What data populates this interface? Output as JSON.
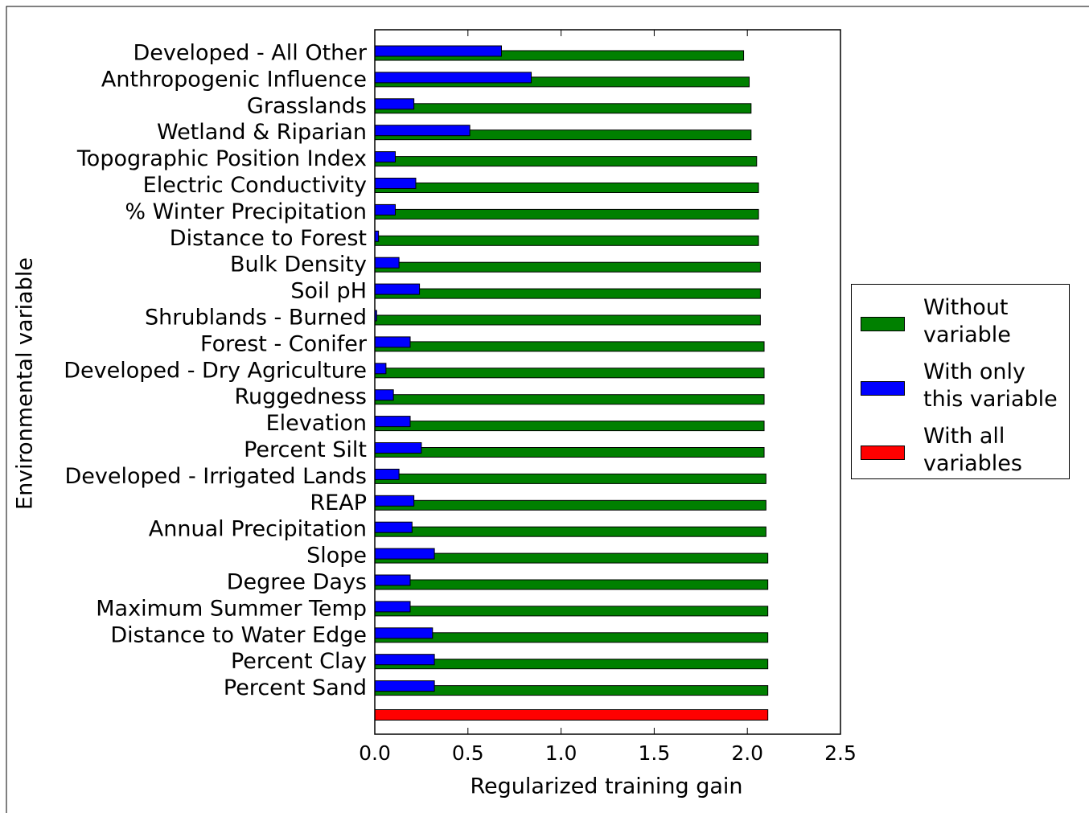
{
  "chart_data": {
    "type": "grouped-hbar",
    "x_label": "Regularized training gain",
    "y_label": "Environmental variable",
    "categories": [
      "Developed - All Other",
      "Anthropogenic Influence",
      "Grasslands",
      "Wetland & Riparian",
      "Topographic Position Index",
      "Electric Conductivity",
      "% Winter Precipitation",
      "Distance to Forest",
      "Bulk Density",
      "Soil pH",
      "Shrublands - Burned",
      "Forest - Conifer",
      "Developed - Dry Agriculture",
      "Ruggedness",
      "Elevation",
      "Percent Silt",
      "Developed - Irrigated Lands",
      "REAP",
      "Annual Precipitation",
      "Slope",
      "Degree Days",
      "Maximum Summer Temp",
      "Distance to Water Edge",
      "Percent Clay",
      "Percent Sand",
      null
    ],
    "series": [
      {
        "name": "Without variable",
        "color": "#008000",
        "values": [
          1.98,
          2.01,
          2.02,
          2.02,
          2.05,
          2.06,
          2.06,
          2.06,
          2.07,
          2.07,
          2.07,
          2.09,
          2.09,
          2.09,
          2.09,
          2.09,
          2.1,
          2.1,
          2.1,
          2.11,
          2.11,
          2.11,
          2.11,
          2.11,
          2.11,
          null
        ]
      },
      {
        "name": "With only this variable",
        "color": "#0000ff",
        "values": [
          0.68,
          0.84,
          0.21,
          0.51,
          0.11,
          0.22,
          0.11,
          0.02,
          0.13,
          0.24,
          0.01,
          0.19,
          0.06,
          0.1,
          0.19,
          0.25,
          0.13,
          0.21,
          0.2,
          0.32,
          0.19,
          0.19,
          0.31,
          0.32,
          0.32,
          null
        ]
      },
      {
        "name": "With all variables",
        "color": "#ff0000",
        "values": [
          null,
          null,
          null,
          null,
          null,
          null,
          null,
          null,
          null,
          null,
          null,
          null,
          null,
          null,
          null,
          null,
          null,
          null,
          null,
          null,
          null,
          null,
          null,
          null,
          null,
          2.11
        ]
      }
    ],
    "xlim": [
      0,
      2.5
    ],
    "xticks": [
      {
        "value": 0,
        "label": "0.0"
      },
      0.5,
      {
        "value": 1,
        "label": "1.0"
      },
      1.5,
      {
        "value": 2,
        "label": "2.0"
      },
      2.5
    ],
    "legend": "right"
  }
}
